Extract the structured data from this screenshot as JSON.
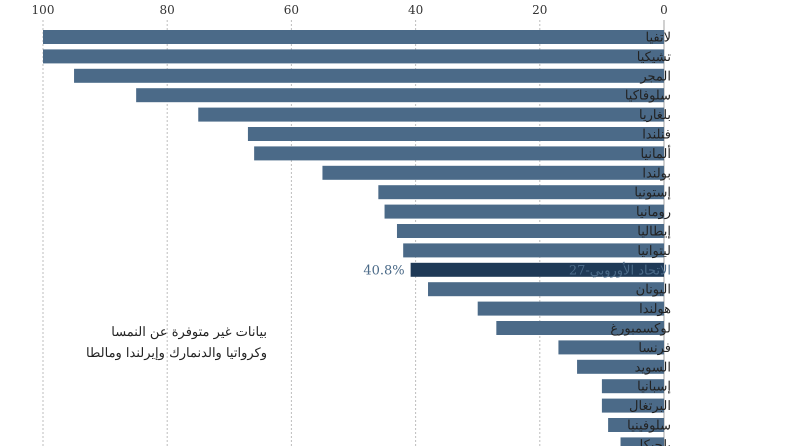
{
  "chart_data": {
    "type": "bar",
    "orientation": "horizontal",
    "direction": "rtl",
    "xlim": [
      0,
      100
    ],
    "ticks": [
      0,
      20,
      40,
      60,
      80,
      100
    ],
    "grid": true,
    "colors": {
      "bar": "#4b6a88",
      "highlight": "#1f3a57",
      "grid": "#bdbdbd"
    },
    "categories": [
      "لاتفيا",
      "تشيكيا",
      "المجر",
      "سلوفاكيا",
      "بلغاريا",
      "فنلندا",
      "ألمانيا",
      "بولندا",
      "إستونيا",
      "رومانيا",
      "إيطاليا",
      "ليتوانيا",
      "الاتحاد الأوروبي-27",
      "اليونان",
      "هولندا",
      "لوكسمبورغ",
      "فرنسا",
      "السويد",
      "إسبانيا",
      "البرتغال",
      "سلوفينيا",
      "بلجيكا"
    ],
    "values": [
      100,
      100,
      95,
      85,
      75,
      67,
      66,
      55,
      46,
      45,
      43,
      42,
      40.8,
      38,
      30,
      27,
      17,
      14,
      10,
      10,
      9,
      7
    ],
    "highlight_index": 12,
    "highlight_label": "40.8%"
  },
  "note": {
    "line1": "بيانات غير متوفرة عن النمسا",
    "line2": "وكرواتيا والدنمارك وإيرلندا ومالطا"
  }
}
